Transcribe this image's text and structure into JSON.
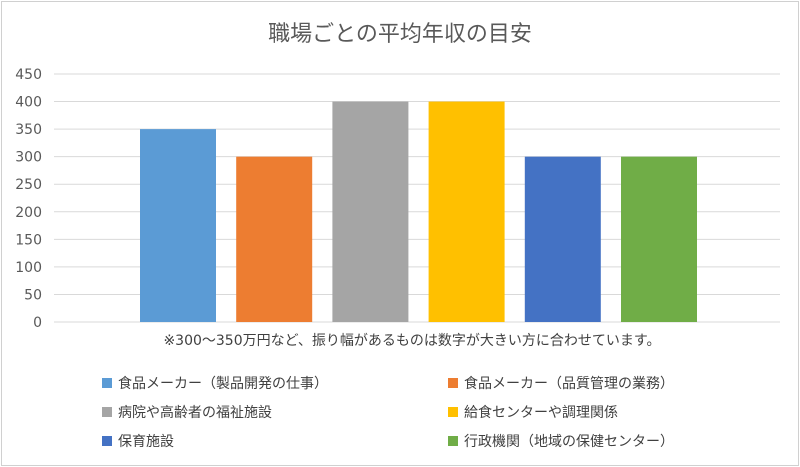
{
  "chart_data": {
    "type": "bar",
    "title": "職場ごとの平均年収の目安",
    "categories": [
      "食品メーカー（製品開発の仕事）",
      "食品メーカー（品質管理の業務）",
      "病院や高齢者の福祉施設",
      "給食センターや調理関係",
      "保育施設",
      "行政機関（地域の保健センター）"
    ],
    "values": [
      350,
      300,
      400,
      400,
      300,
      300
    ],
    "colors": [
      "#5b9bd5",
      "#ed7d31",
      "#a5a5a5",
      "#ffc000",
      "#4472c4",
      "#70ad47"
    ],
    "ylim": [
      0,
      450
    ],
    "yticks": [
      "0",
      "50",
      "100",
      "150",
      "200",
      "250",
      "300",
      "350",
      "400",
      "450"
    ],
    "grid": true,
    "note": "※300～350万円など、振り幅があるものは数字が大きい方に合わせています。",
    "legend_position": "bottom"
  }
}
